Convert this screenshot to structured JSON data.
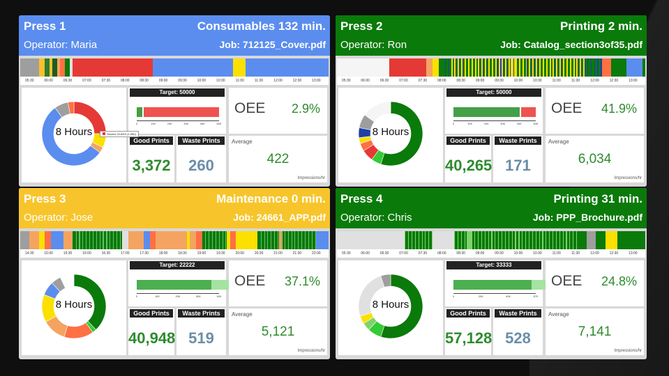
{
  "panels": [
    {
      "name": "Press 1",
      "status": "Consumables 132 min.",
      "operator": "Operator: Maria",
      "job": "Job: 712125_Cover.pdf",
      "header_color": "#5b8def",
      "hours_label": "8 Hours",
      "target_label": "Target: 50000",
      "good_label": "Good Prints",
      "good_value": "3,372",
      "waste_label": "Waste Prints",
      "waste_value": "260",
      "oee_label": "OEE",
      "oee_value": "2.9%",
      "avg_label": "Average",
      "avg_value": "422",
      "avg_unit": "Impressions/hr",
      "tooltip": "Service 24.84% (1.99h)",
      "ticks": [
        "05:30",
        "06:00",
        "06:30",
        "07:00",
        "07:30",
        "08:00",
        "08:30",
        "09:00",
        "09:30",
        "10:00",
        "10:30",
        "11:00",
        "11:30",
        "12:00",
        "12:30",
        "13:00"
      ],
      "bar_ticks": [
        "0",
        "10K",
        "20K",
        "30K",
        "40K",
        "50K"
      ],
      "progress": {
        "good": 3372,
        "waste": 260,
        "target": 50000
      }
    },
    {
      "name": "Press 2",
      "status": "Printing 2 min.",
      "operator": "Operator: Ron",
      "job": "Job: Catalog_section3of35.pdf",
      "header_color": "#0a7a0a",
      "hours_label": "8 Hours",
      "target_label": "Target: 50000",
      "good_label": "Good Prints",
      "good_value": "40,265",
      "waste_label": "Waste Prints",
      "waste_value": "171",
      "oee_label": "OEE",
      "oee_value": "41.9%",
      "avg_label": "Average",
      "avg_value": "6,034",
      "avg_unit": "Impressions/hr",
      "ticks": [
        "05:30",
        "06:00",
        "06:30",
        "07:00",
        "07:30",
        "08:00",
        "08:30",
        "09:00",
        "09:30",
        "10:00",
        "10:30",
        "11:00",
        "11:30",
        "12:00",
        "12:30",
        "13:00"
      ],
      "bar_ticks": [
        "0",
        "10K",
        "20K",
        "30K",
        "40K",
        "50K"
      ],
      "progress": {
        "good": 40265,
        "waste": 171,
        "target": 50000
      }
    },
    {
      "name": "Press 3",
      "status": "Maintenance 0 min.",
      "operator": "Operator: Jose",
      "job": "Job: 24661_APP.pdf",
      "header_color": "#f7c52b",
      "hours_label": "8 Hours",
      "target_label": "Target: 22222",
      "good_label": "Good Prints",
      "good_value": "40,948",
      "waste_label": "Waste Prints",
      "waste_value": "519",
      "oee_label": "OEE",
      "oee_value": "37.1%",
      "avg_label": "Average",
      "avg_value": "5,121",
      "avg_unit": "Impressions/hr",
      "ticks": [
        "14:30",
        "15:00",
        "15:30",
        "16:00",
        "16:30",
        "17:00",
        "17:30",
        "18:00",
        "18:30",
        "19:00",
        "19:30",
        "20:00",
        "20:30",
        "21:00",
        "21:30",
        "22:00"
      ],
      "bar_ticks": [
        "0",
        "10K",
        "20K",
        "30K",
        "40K"
      ],
      "progress": {
        "good": 40948,
        "waste": 519,
        "target": 22222
      }
    },
    {
      "name": "Press 4",
      "status": "Printing 31 min.",
      "operator": "Operator: Chris",
      "job": "Job: PPP_Brochure.pdf",
      "header_color": "#0a7a0a",
      "hours_label": "8 Hours",
      "target_label": "Target: 33333",
      "good_label": "Good Prints",
      "good_value": "57,128",
      "waste_label": "Waste Prints",
      "waste_value": "528",
      "oee_label": "OEE",
      "oee_value": "24.8%",
      "avg_label": "Average",
      "avg_value": "7,141",
      "avg_unit": "Impressions/hr",
      "ticks": [
        "05:30",
        "06:00",
        "06:30",
        "07:00",
        "07:30",
        "08:00",
        "08:30",
        "09:00",
        "09:30",
        "10:00",
        "10:30",
        "11:00",
        "11:30",
        "12:00",
        "12:30",
        "13:00"
      ],
      "bar_ticks": [
        "0",
        "20K",
        "40K",
        "57K"
      ],
      "progress": {
        "good": 57128,
        "waste": 528,
        "target": 33333
      }
    }
  ]
}
